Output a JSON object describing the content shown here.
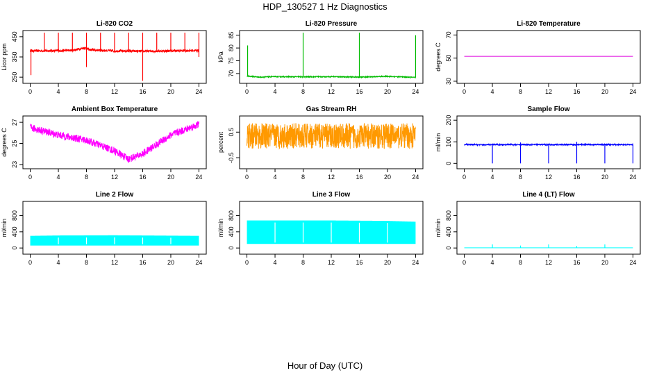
{
  "figure": {
    "title": "HDP_130527  1 Hz Diagnostics",
    "xlabel": "Hour of Day (UTC)"
  },
  "chart_data": [
    {
      "id": "co2",
      "type": "line",
      "title": "Li-820 CO2",
      "ylabel": "Licor ppm",
      "color": "#ff0000",
      "xlim": [
        0,
        24
      ],
      "ylim": [
        230,
        470
      ],
      "xticks": [
        0,
        4,
        8,
        12,
        16,
        20,
        24
      ],
      "yticks": [
        250,
        350,
        450
      ],
      "baseline": [
        [
          0,
          380
        ],
        [
          4,
          381
        ],
        [
          6,
          383
        ],
        [
          7.8,
          395
        ],
        [
          8.5,
          385
        ],
        [
          12,
          380
        ],
        [
          16,
          378
        ],
        [
          20,
          380
        ],
        [
          24,
          382
        ]
      ],
      "noise": 6,
      "spikes_up": [
        [
          2,
          470
        ],
        [
          4,
          470
        ],
        [
          6,
          470
        ],
        [
          8,
          470
        ],
        [
          10,
          470
        ],
        [
          12,
          470
        ],
        [
          14,
          470
        ],
        [
          16,
          470
        ],
        [
          18,
          470
        ],
        [
          20,
          470
        ],
        [
          22,
          470
        ],
        [
          24,
          470
        ]
      ],
      "spikes_down": [
        [
          0.1,
          260
        ],
        [
          8,
          300
        ],
        [
          16,
          232
        ],
        [
          24,
          350
        ]
      ],
      "series": [
        {
          "x": [
            0,
            4,
            8,
            12,
            16,
            20,
            24
          ],
          "y": [
            380,
            381,
            395,
            380,
            378,
            380,
            382
          ]
        }
      ]
    },
    {
      "id": "pressure",
      "type": "line",
      "title": "Li-820 Pressure",
      "ylabel": "kPa",
      "color": "#00bb00",
      "xlim": [
        0,
        24
      ],
      "ylim": [
        67,
        86
      ],
      "xticks": [
        0,
        4,
        8,
        12,
        16,
        20,
        24
      ],
      "yticks": [
        70,
        75,
        80,
        85
      ],
      "baseline": [
        [
          0,
          69
        ],
        [
          2,
          68.6
        ],
        [
          4,
          68.8
        ],
        [
          8,
          68.7
        ],
        [
          12,
          68.8
        ],
        [
          16,
          68.6
        ],
        [
          20,
          68.9
        ],
        [
          24,
          68.5
        ]
      ],
      "noise": 0.2,
      "spikes_up": [
        [
          0.1,
          81
        ],
        [
          8,
          86
        ],
        [
          16,
          86
        ],
        [
          24,
          85
        ]
      ],
      "spikes_down": [],
      "series": [
        {
          "x": [
            0,
            4,
            8,
            12,
            16,
            20,
            24
          ],
          "y": [
            69,
            68.8,
            68.7,
            68.8,
            68.6,
            68.9,
            68.5
          ]
        }
      ]
    },
    {
      "id": "temp",
      "type": "line",
      "title": "Li-820 Temperature",
      "ylabel": "degrees C",
      "color": "#dd00dd",
      "xlim": [
        0,
        24
      ],
      "ylim": [
        30,
        72
      ],
      "xticks": [
        0,
        4,
        8,
        12,
        16,
        20,
        24
      ],
      "yticks": [
        30,
        50,
        70
      ],
      "baseline": [
        [
          0,
          51.5
        ],
        [
          24,
          51.5
        ]
      ],
      "noise": 0,
      "spikes_up": [],
      "spikes_down": [],
      "series": [
        {
          "x": [
            0,
            24
          ],
          "y": [
            51.5,
            51.5
          ]
        }
      ]
    },
    {
      "id": "ambient",
      "type": "line",
      "title": "Ambient Box Temperature",
      "ylabel": "degrees C",
      "color": "#ff00ff",
      "xlim": [
        0,
        24
      ],
      "ylim": [
        22.8,
        27.4
      ],
      "xticks": [
        0,
        4,
        8,
        12,
        16,
        20,
        24
      ],
      "yticks": [
        23,
        25,
        27
      ],
      "baseline": [
        [
          0,
          26.5
        ],
        [
          4,
          25.8
        ],
        [
          8,
          25.3
        ],
        [
          12,
          24.3
        ],
        [
          14,
          23.5
        ],
        [
          16,
          24
        ],
        [
          20,
          25.8
        ],
        [
          24,
          26.8
        ]
      ],
      "noise": 0.35,
      "spikes_up": [],
      "spikes_down": [],
      "series": [
        {
          "x": [
            0,
            4,
            8,
            12,
            14,
            16,
            20,
            24
          ],
          "y": [
            26.5,
            25.8,
            25.3,
            24.3,
            23.5,
            24,
            25.8,
            26.8
          ]
        }
      ]
    },
    {
      "id": "rh",
      "type": "line",
      "title": "Gas Stream RH",
      "ylabel": "percent",
      "color": "#ff9900",
      "xlim": [
        0,
        24
      ],
      "ylim": [
        -0.85,
        1.05
      ],
      "xticks": [
        0,
        4,
        8,
        12,
        16,
        20,
        24
      ],
      "yticks": [
        -0.5,
        0.5
      ],
      "baseline": [
        [
          0,
          0.35
        ],
        [
          24,
          0.35
        ]
      ],
      "noise": 0.5,
      "spikes_up": [],
      "spikes_down": [],
      "series": [
        {
          "x": [
            0,
            24
          ],
          "y": [
            0.35,
            0.35
          ]
        }
      ]
    },
    {
      "id": "sampleflow",
      "type": "line",
      "title": "Sample Flow",
      "ylabel": "ml/min",
      "color": "#0000ff",
      "xlim": [
        0,
        24
      ],
      "ylim": [
        -15,
        210
      ],
      "xticks": [
        0,
        4,
        8,
        12,
        16,
        20,
        24
      ],
      "yticks": [
        0,
        100,
        200
      ],
      "baseline": [
        [
          0,
          87
        ],
        [
          24,
          87
        ]
      ],
      "noise": 3,
      "spikes_up": [
        [
          8,
          97
        ],
        [
          16,
          100
        ]
      ],
      "spikes_down": [
        [
          4,
          0
        ],
        [
          8,
          0
        ],
        [
          12,
          0
        ],
        [
          16,
          0
        ],
        [
          20,
          0
        ],
        [
          24,
          0
        ]
      ],
      "series": [
        {
          "x": [
            0,
            24
          ],
          "y": [
            87,
            87
          ]
        }
      ]
    },
    {
      "id": "line2",
      "type": "area",
      "title": "Line 2 Flow",
      "ylabel": "ml/min",
      "color": "#00ffff",
      "xlim": [
        0,
        24
      ],
      "ylim": [
        -100,
        1100
      ],
      "xticks": [
        0,
        4,
        8,
        12,
        16,
        20,
        24
      ],
      "yticks": [
        0,
        400,
        800
      ],
      "band": {
        "low": 60,
        "high": [
          [
            0,
            300
          ],
          [
            4,
            310
          ],
          [
            12,
            315
          ],
          [
            20,
            305
          ],
          [
            24,
            300
          ]
        ]
      },
      "gaps": [
        4,
        8,
        12,
        16,
        20
      ],
      "series": [
        {
          "x": [
            0,
            4,
            12,
            20,
            24
          ],
          "y": [
            300,
            310,
            315,
            305,
            300
          ]
        }
      ]
    },
    {
      "id": "line3",
      "type": "area",
      "title": "Line 3 Flow",
      "ylabel": "ml/min",
      "color": "#00ffff",
      "xlim": [
        0,
        24
      ],
      "ylim": [
        -100,
        1100
      ],
      "xticks": [
        0,
        4,
        8,
        12,
        16,
        20,
        24
      ],
      "yticks": [
        0,
        400,
        800
      ],
      "band": {
        "low": 100,
        "high": [
          [
            0,
            680
          ],
          [
            12,
            680
          ],
          [
            20,
            670
          ],
          [
            24,
            650
          ]
        ]
      },
      "gaps": [
        4,
        8,
        12,
        16,
        20
      ],
      "series": [
        {
          "x": [
            0,
            12,
            20,
            24
          ],
          "y": [
            680,
            680,
            670,
            650
          ]
        }
      ]
    },
    {
      "id": "line4",
      "type": "line",
      "title": "Line 4 (LT) Flow",
      "ylabel": "ml/min",
      "color": "#00ffff",
      "xlim": [
        0,
        24
      ],
      "ylim": [
        -100,
        1100
      ],
      "xticks": [
        0,
        4,
        8,
        12,
        16,
        20,
        24
      ],
      "yticks": [
        0,
        400,
        800
      ],
      "baseline": [
        [
          0,
          5
        ],
        [
          24,
          5
        ]
      ],
      "noise": 0,
      "spikes_up": [
        [
          4,
          90
        ],
        [
          8,
          60
        ],
        [
          12,
          90
        ],
        [
          16,
          50
        ],
        [
          20,
          90
        ]
      ],
      "spikes_down": [],
      "series": [
        {
          "x": [
            0,
            24
          ],
          "y": [
            5,
            5
          ]
        }
      ]
    }
  ]
}
